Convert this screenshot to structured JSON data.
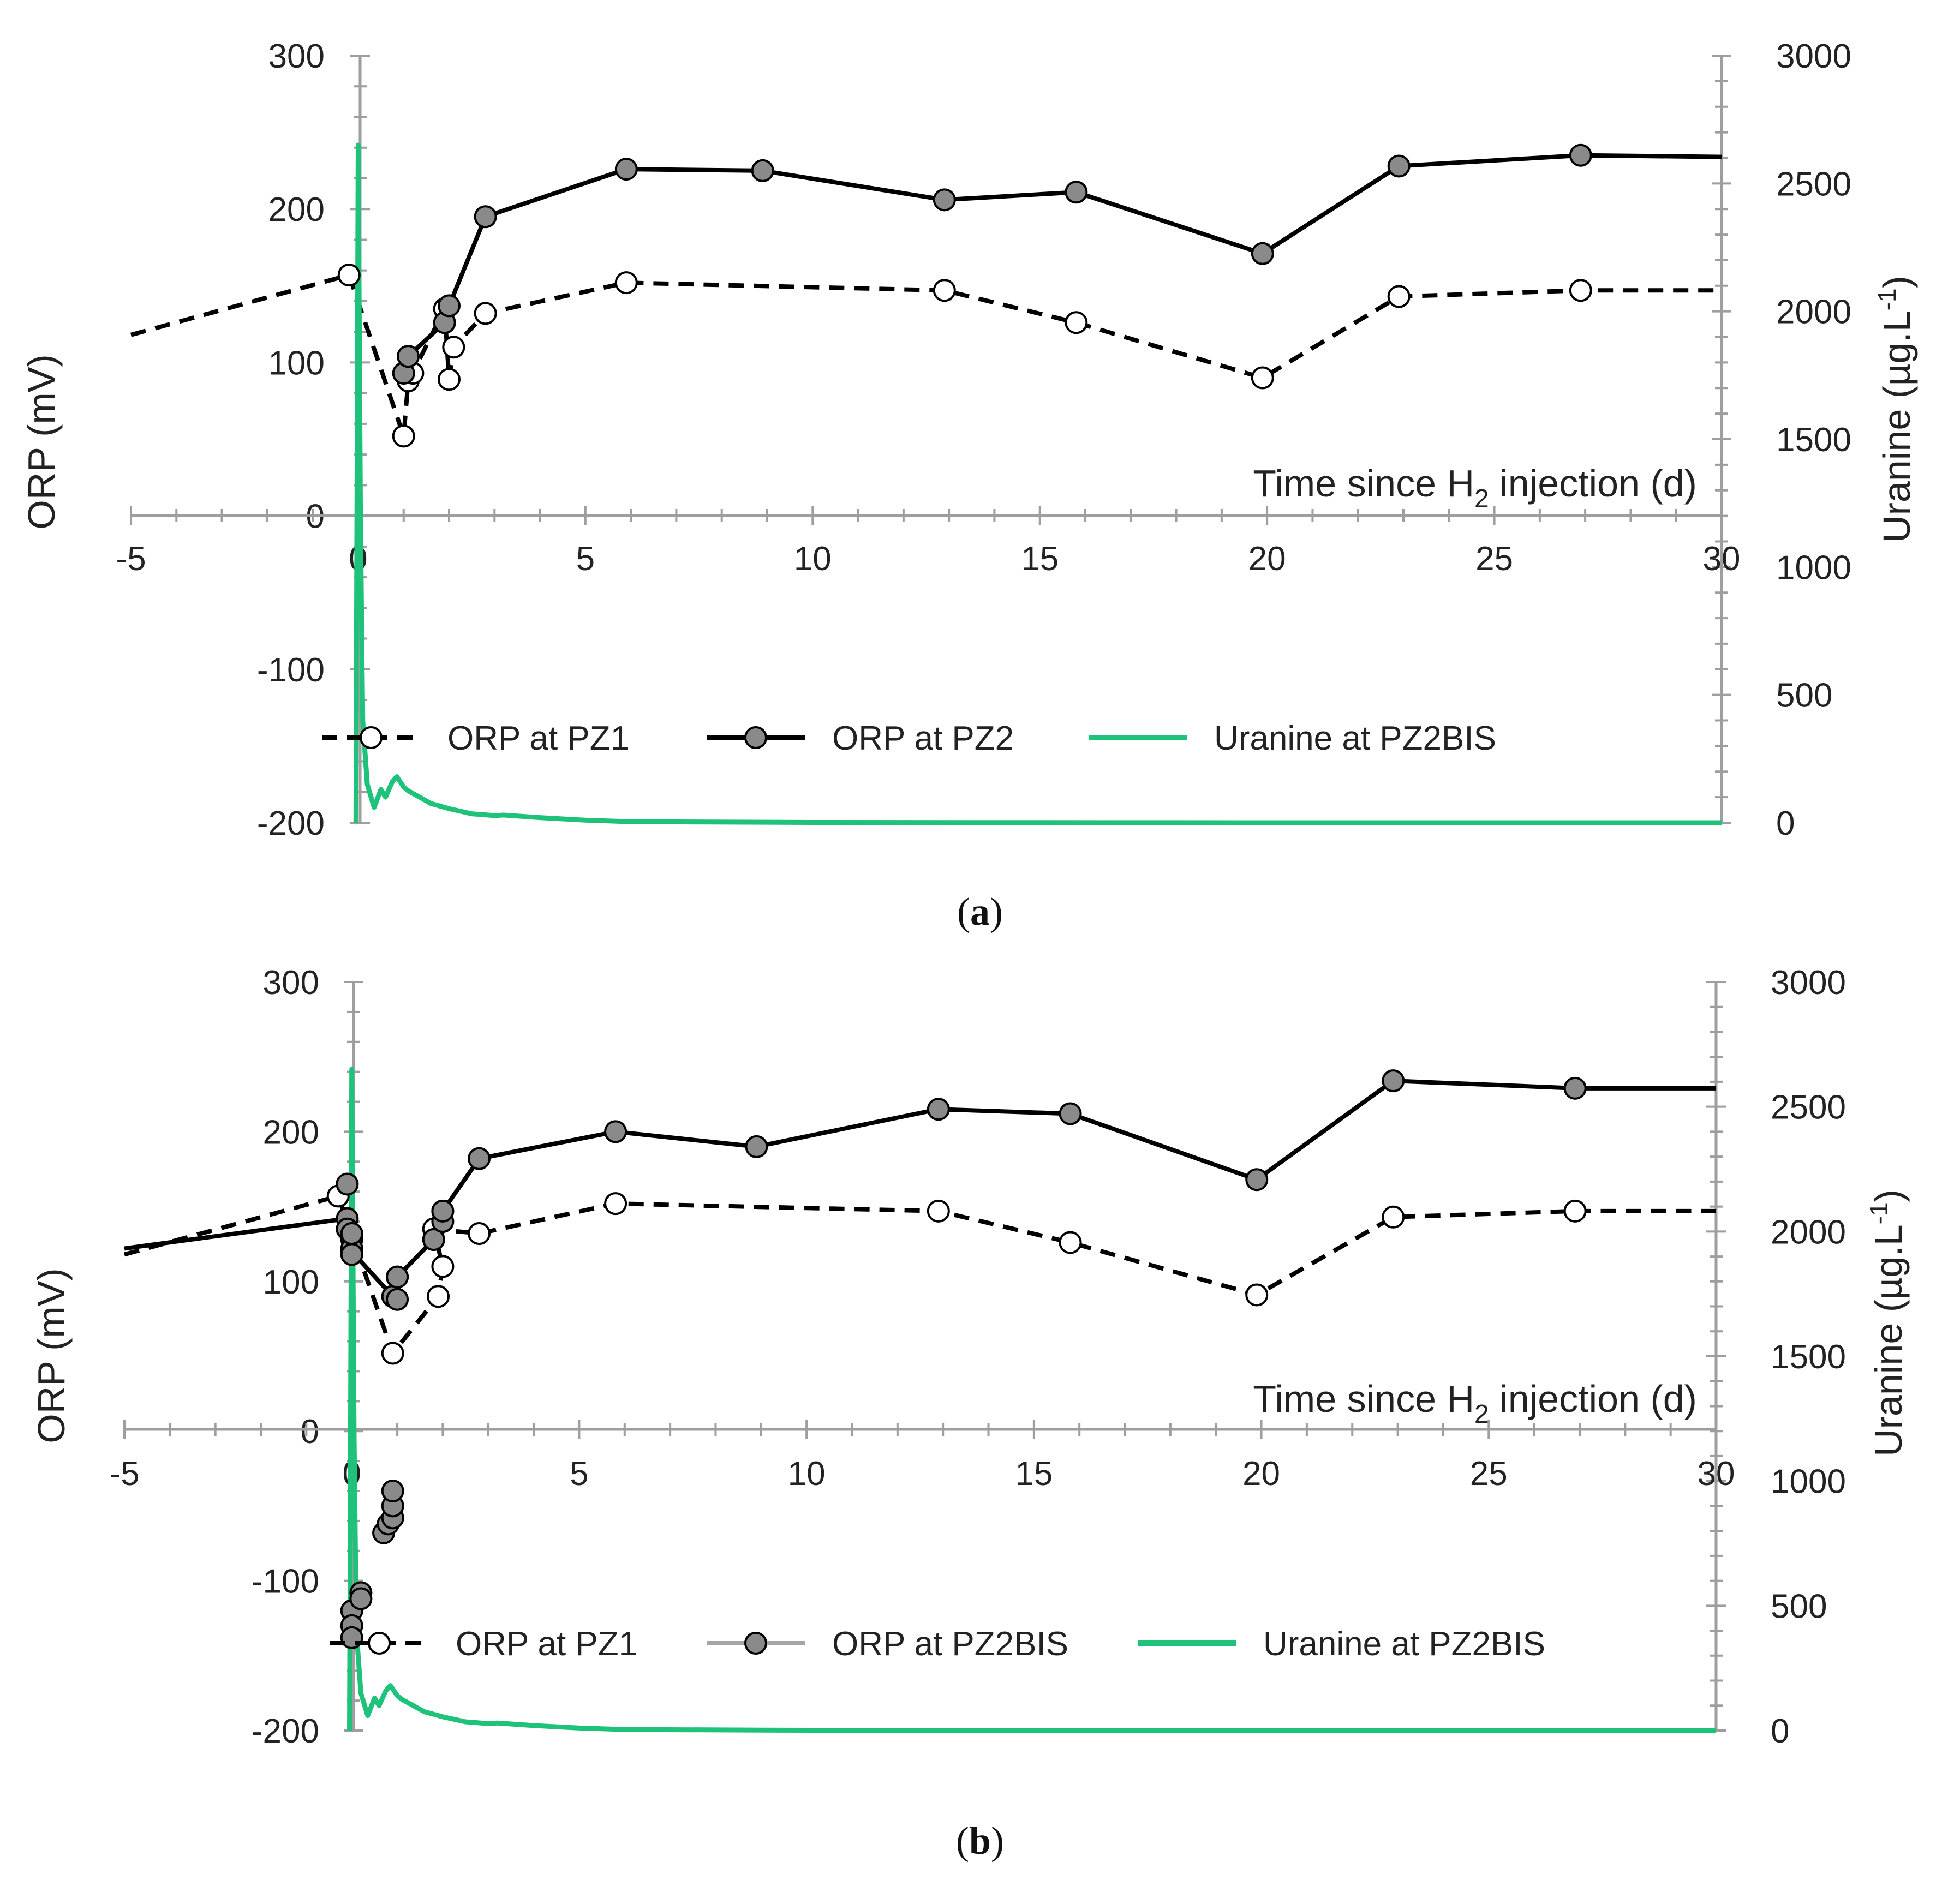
{
  "chart_data": [
    {
      "type": "line",
      "panel_label": "a",
      "x_axis": {
        "label_prefix": "Time since H",
        "label_sub": "2",
        "label_suffix": " injection (d)",
        "ticks": [
          -5,
          0,
          5,
          10,
          15,
          20,
          25,
          30
        ],
        "xlim": [
          -5,
          30
        ]
      },
      "y_left": {
        "label": "ORP (mV)",
        "ticks": [
          -200,
          -100,
          0,
          100,
          200,
          300
        ],
        "ylim": [
          -200,
          300
        ]
      },
      "y_right": {
        "label": "Uranine (µg.L",
        "label_sup": "-1",
        "label_close": ")",
        "ticks": [
          0,
          500,
          1000,
          1500,
          2000,
          2500,
          3000
        ],
        "ylim": [
          0,
          3000
        ]
      },
      "series": [
        {
          "name": "ORP at PZ1",
          "axis": "left",
          "style": "dashed-open",
          "color": "#000000",
          "points": [
            [
              -5,
              118
            ],
            [
              -0.2,
              157
            ],
            [
              1.0,
              52
            ],
            [
              1.1,
              88
            ],
            [
              1.2,
              93
            ],
            [
              1.9,
              135
            ],
            [
              2.0,
              89
            ],
            [
              2.1,
              110
            ],
            [
              2.8,
              132
            ],
            [
              5.9,
              152
            ],
            [
              12.9,
              147
            ],
            [
              15.8,
              126
            ],
            [
              19.9,
              90
            ],
            [
              22.9,
              143
            ],
            [
              26.9,
              147
            ],
            [
              30,
              147
            ]
          ]
        },
        {
          "name": "ORP at PZ2",
          "axis": "left",
          "style": "solid-filled",
          "color": "#000000",
          "points": [
            [
              1.0,
              93
            ],
            [
              1.1,
              104
            ],
            [
              1.9,
              126
            ],
            [
              2.0,
              137
            ],
            [
              2.8,
              195
            ],
            [
              5.9,
              226
            ],
            [
              8.9,
              225
            ],
            [
              12.9,
              206
            ],
            [
              15.8,
              211
            ],
            [
              19.9,
              171
            ],
            [
              22.9,
              228
            ],
            [
              26.9,
              235
            ],
            [
              30,
              234
            ]
          ]
        },
        {
          "name": "Uranine at PZ2BIS",
          "axis": "right",
          "style": "solid",
          "color": "#1fc27a",
          "points": [
            [
              -0.05,
              0
            ],
            [
              0.0,
              2650
            ],
            [
              0.05,
              1200
            ],
            [
              0.1,
              400
            ],
            [
              0.2,
              150
            ],
            [
              0.35,
              60
            ],
            [
              0.5,
              130
            ],
            [
              0.6,
              100
            ],
            [
              0.75,
              160
            ],
            [
              0.85,
              180
            ],
            [
              1.0,
              140
            ],
            [
              1.1,
              125
            ],
            [
              1.25,
              110
            ],
            [
              1.4,
              95
            ],
            [
              1.6,
              75
            ],
            [
              2.0,
              55
            ],
            [
              2.5,
              35
            ],
            [
              3.0,
              28
            ],
            [
              3.2,
              30
            ],
            [
              4.0,
              20
            ],
            [
              5.0,
              10
            ],
            [
              6.0,
              4
            ],
            [
              10.0,
              1
            ],
            [
              20.0,
              0
            ],
            [
              30.0,
              0
            ]
          ]
        }
      ],
      "legend": {
        "placement": "bottom-center",
        "entries": [
          "ORP at PZ1",
          "ORP at PZ2",
          "Uranine at PZ2BIS"
        ]
      }
    },
    {
      "type": "line",
      "panel_label": "b",
      "x_axis": {
        "label_prefix": "Time since H",
        "label_sub": "2",
        "label_suffix": " injection (d)",
        "ticks": [
          -5,
          0,
          5,
          10,
          15,
          20,
          25,
          30
        ],
        "xlim": [
          -5,
          30
        ]
      },
      "y_left": {
        "label": "ORP (mV)",
        "ticks": [
          -200,
          -100,
          0,
          100,
          200,
          300
        ],
        "ylim": [
          -200,
          300
        ]
      },
      "y_right": {
        "label": "Uranine (µg.L",
        "label_sup": "-1",
        "label_close": ")",
        "ticks": [
          0,
          500,
          1000,
          1500,
          2000,
          2500,
          3000
        ],
        "ylim": [
          0,
          3000
        ]
      },
      "series": [
        {
          "name": "ORP at PZ1",
          "axis": "left",
          "style": "dashed-open",
          "color": "#000000",
          "points": [
            [
              -5,
              118
            ],
            [
              -0.3,
              157
            ],
            [
              0.9,
              52
            ],
            [
              1.9,
              90
            ],
            [
              2.0,
              110
            ],
            [
              1.8,
              135
            ],
            [
              2.8,
              132
            ],
            [
              5.8,
              152
            ],
            [
              12.9,
              147
            ],
            [
              15.8,
              126
            ],
            [
              19.9,
              91
            ],
            [
              22.9,
              143
            ],
            [
              26.9,
              147
            ],
            [
              30,
              147
            ]
          ]
        },
        {
          "name": "ORP at PZ2BIS",
          "axis": "left",
          "style": "solid-filled",
          "color": "#000000",
          "extra_points": [
            [
              -0.1,
              165
            ],
            [
              -0.1,
              135
            ],
            [
              0.0,
              128
            ],
            [
              0.0,
              122
            ],
            [
              0.0,
              118
            ],
            [
              0.0,
              132
            ],
            [
              0.9,
              90
            ],
            [
              1.0,
              88
            ],
            [
              1.0,
              103
            ],
            [
              1.8,
              128
            ],
            [
              2.0,
              140
            ],
            [
              2.0,
              147
            ],
            [
              0.0,
              -120
            ],
            [
              0.0,
              -130
            ],
            [
              0.0,
              -138
            ],
            [
              0.2,
              -108
            ],
            [
              0.2,
              -112
            ],
            [
              0.7,
              -68
            ],
            [
              0.8,
              -62
            ],
            [
              0.9,
              -58
            ],
            [
              0.9,
              -50
            ],
            [
              0.9,
              -40
            ]
          ],
          "points": [
            [
              -5,
              122
            ],
            [
              -0.1,
              142
            ],
            [
              0.0,
              120
            ],
            [
              0.9,
              90
            ],
            [
              1.0,
              103
            ],
            [
              1.8,
              128
            ],
            [
              2.0,
              147
            ],
            [
              2.8,
              182
            ],
            [
              5.8,
              200
            ],
            [
              8.9,
              190
            ],
            [
              12.9,
              215
            ],
            [
              15.8,
              212
            ],
            [
              19.9,
              168
            ],
            [
              22.9,
              234
            ],
            [
              26.9,
              229
            ],
            [
              30,
              229
            ]
          ]
        },
        {
          "name": "Uranine at PZ2BIS",
          "axis": "right",
          "style": "solid",
          "color": "#1fc27a",
          "points": [
            [
              -0.05,
              0
            ],
            [
              0.0,
              2650
            ],
            [
              0.05,
              1200
            ],
            [
              0.1,
              400
            ],
            [
              0.2,
              150
            ],
            [
              0.35,
              60
            ],
            [
              0.5,
              130
            ],
            [
              0.6,
              100
            ],
            [
              0.75,
              160
            ],
            [
              0.85,
              180
            ],
            [
              1.0,
              140
            ],
            [
              1.1,
              125
            ],
            [
              1.25,
              110
            ],
            [
              1.4,
              95
            ],
            [
              1.6,
              75
            ],
            [
              2.0,
              55
            ],
            [
              2.5,
              35
            ],
            [
              3.0,
              28
            ],
            [
              3.2,
              30
            ],
            [
              4.0,
              20
            ],
            [
              5.0,
              10
            ],
            [
              6.0,
              4
            ],
            [
              10.0,
              1
            ],
            [
              20.0,
              0
            ],
            [
              30.0,
              0
            ]
          ]
        }
      ],
      "legend": {
        "placement": "bottom-center",
        "entries": [
          "ORP at PZ1",
          "ORP at PZ2BIS",
          "Uranine at PZ2BIS"
        ]
      }
    }
  ]
}
